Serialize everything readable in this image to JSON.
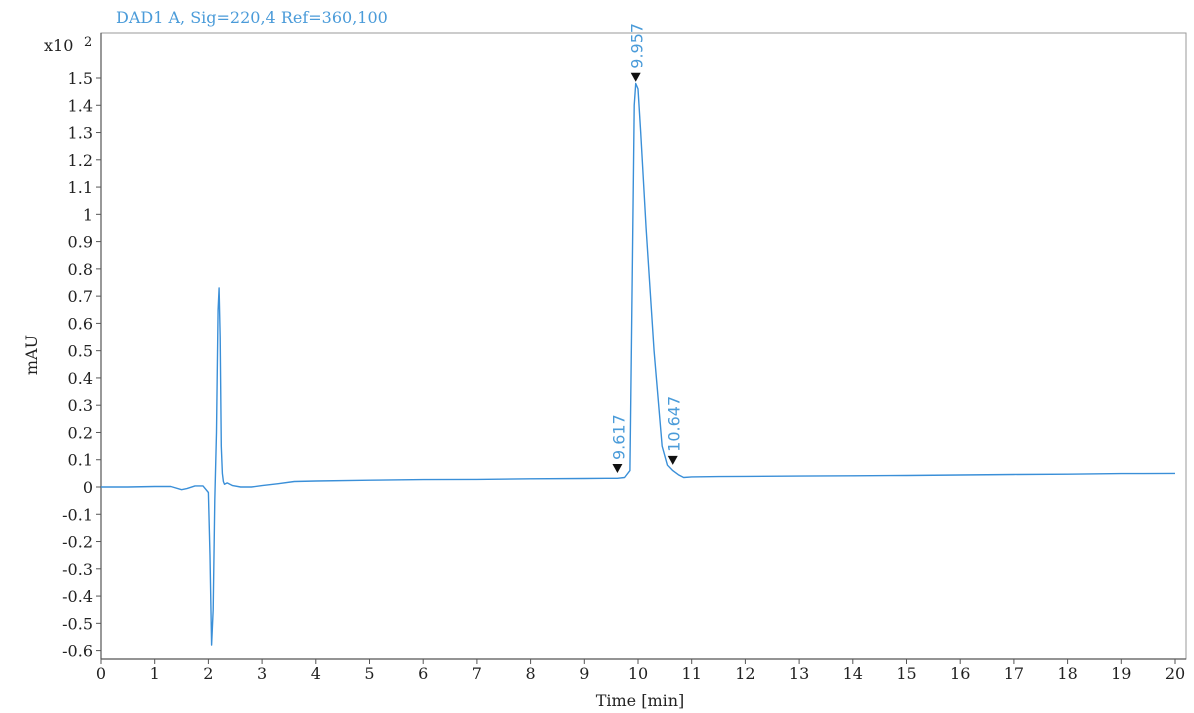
{
  "chart_data": {
    "type": "line",
    "title": "DAD1 A,  Sig=220,4 Ref=360,100",
    "xlabel": "Time [min]",
    "ylabel": "mAU",
    "y_multiplier_label": "x10",
    "y_multiplier_exponent": "2",
    "xlim": [
      0,
      20.2
    ],
    "ylim": [
      -0.63,
      1.67
    ],
    "x_ticks": [
      0,
      1,
      2,
      3,
      4,
      5,
      6,
      7,
      8,
      9,
      10,
      11,
      12,
      13,
      14,
      15,
      16,
      17,
      18,
      19,
      20
    ],
    "x_tick_labels": [
      "0",
      "1",
      "2",
      "3",
      "4",
      "5",
      "6",
      "7",
      "8",
      "9",
      "10",
      "11",
      "12",
      "13",
      "14",
      "15",
      "16",
      "17",
      "18",
      "19",
      "20"
    ],
    "y_ticks": [
      -0.6,
      -0.5,
      -0.4,
      -0.3,
      -0.2,
      -0.1,
      0,
      0.1,
      0.2,
      0.3,
      0.4,
      0.5,
      0.6,
      0.7,
      0.8,
      0.9,
      1,
      1.1,
      1.2,
      1.3,
      1.4,
      1.5
    ],
    "y_tick_labels": [
      "-0.6",
      "-0.5",
      "-0.4",
      "-0.3",
      "-0.2",
      "-0.1",
      "0",
      "0.1",
      "0.2",
      "0.3",
      "0.4",
      "0.5",
      "0.6",
      "0.7",
      "0.8",
      "0.9",
      "1",
      "1.1",
      "1.2",
      "1.3",
      "1.4",
      "1.5"
    ],
    "grid": false,
    "colors": {
      "trace": "#3a8fd8",
      "annotation": "#4a9bd9",
      "axis": "#555555",
      "marker": "#111111"
    },
    "series": [
      {
        "x": [
          0,
          0.5,
          1.0,
          1.3,
          1.5,
          1.6,
          1.75,
          1.9,
          2.0,
          2.03,
          2.06,
          2.09,
          2.12,
          2.15,
          2.18,
          2.2,
          2.22,
          2.24,
          2.26,
          2.28,
          2.3,
          2.35,
          2.45,
          2.6,
          2.8,
          3.0,
          3.3,
          3.6,
          4.0,
          5.0,
          6.0,
          7.0,
          8.0,
          9.0,
          9.4,
          9.55,
          9.617,
          9.75,
          9.85,
          9.9,
          9.93,
          9.957,
          10.0,
          10.05,
          10.15,
          10.3,
          10.45,
          10.55,
          10.647,
          10.75,
          10.85,
          11.0,
          11.5,
          12.0,
          13.0,
          14.0,
          15.0,
          16.0,
          17.0,
          18.0,
          19.0,
          20.0
        ],
        "y": [
          0.0,
          0.0,
          0.002,
          0.002,
          -0.01,
          -0.006,
          0.004,
          0.004,
          -0.02,
          -0.25,
          -0.58,
          -0.45,
          -0.05,
          0.2,
          0.65,
          0.73,
          0.55,
          0.15,
          0.05,
          0.02,
          0.01,
          0.015,
          0.005,
          0.0,
          0.0,
          0.005,
          0.012,
          0.02,
          0.022,
          0.025,
          0.027,
          0.028,
          0.03,
          0.031,
          0.032,
          0.032,
          0.032,
          0.035,
          0.06,
          0.9,
          1.4,
          1.48,
          1.46,
          1.3,
          0.95,
          0.5,
          0.15,
          0.08,
          0.06,
          0.045,
          0.035,
          0.037,
          0.038,
          0.039,
          0.04,
          0.041,
          0.042,
          0.044,
          0.046,
          0.047,
          0.049,
          0.05
        ]
      }
    ],
    "peaks": [
      {
        "rt": 9.617,
        "label": "9.617",
        "marker_y": 0.055
      },
      {
        "rt": 9.957,
        "label": "9.957",
        "marker_y": 1.49
      },
      {
        "rt": 10.647,
        "label": "10.647",
        "marker_y": 0.085
      }
    ]
  }
}
